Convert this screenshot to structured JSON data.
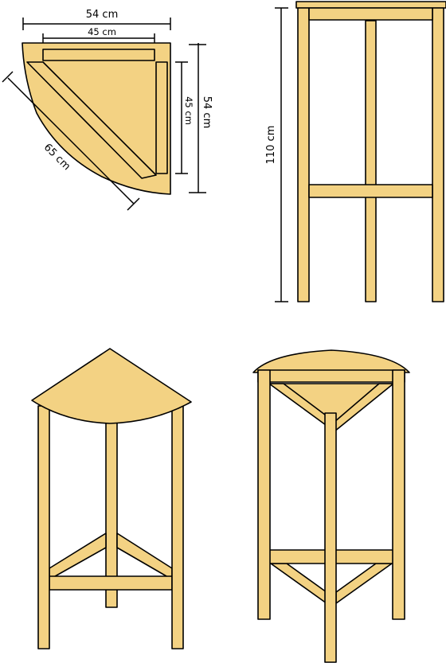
{
  "colors": {
    "wood": "#f3d283",
    "outline": "#000000",
    "background": "#ffffff"
  },
  "dimensions": {
    "top_width": "54 cm",
    "inner_width": "45 cm",
    "side_outer": "54 cm",
    "side_inner": "45 cm",
    "diagonal": "65 cm",
    "height": "110 cm"
  },
  "views": [
    "top-view",
    "side-view",
    "three-quarter-view",
    "rear-view"
  ]
}
